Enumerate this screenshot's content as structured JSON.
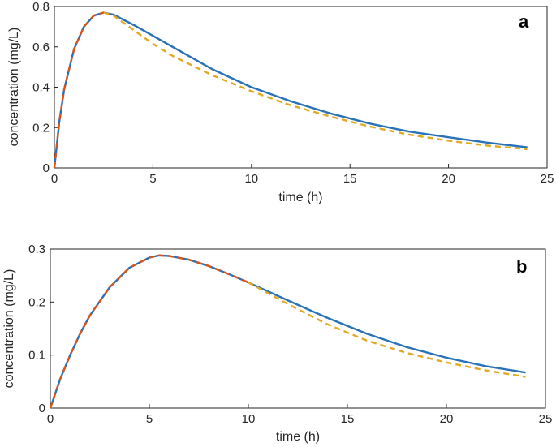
{
  "colors": {
    "blue": "#2a72b8",
    "orange": "#d9541a",
    "gold": "#e2a820",
    "axis": "#262626"
  },
  "chart_data": [
    {
      "type": "line",
      "panel_label": "a",
      "xlabel": "time (h)",
      "ylabel": "concentration (mg/L)",
      "xlim": [
        0,
        25
      ],
      "ylim": [
        0,
        0.8
      ],
      "xticks": [
        0,
        5,
        10,
        15,
        20,
        25
      ],
      "xtick_labels": [
        "0",
        "5",
        "10",
        "15",
        "20",
        "25"
      ],
      "yticks": [
        0,
        0.2,
        0.4,
        0.6,
        0.8
      ],
      "ytick_labels": [
        "0",
        "0.2",
        "0.4",
        "0.6",
        "0.8"
      ],
      "grid": false,
      "series": [
        {
          "color": "#2a72b8",
          "style": "solid",
          "x": [
            0,
            0.25,
            0.5,
            1,
            1.5,
            2,
            2.5,
            3,
            4,
            5,
            6,
            8,
            10,
            12,
            14,
            16,
            18,
            20,
            22,
            24
          ],
          "y": [
            0,
            0.23,
            0.39,
            0.59,
            0.7,
            0.755,
            0.77,
            0.76,
            0.71,
            0.655,
            0.6,
            0.49,
            0.4,
            0.33,
            0.27,
            0.22,
            0.18,
            0.152,
            0.125,
            0.102
          ]
        },
        {
          "color": "#d9541a",
          "style": "dashed",
          "x": [
            0,
            0.25,
            0.5,
            1,
            1.5,
            2,
            2.5
          ],
          "y": [
            0,
            0.23,
            0.39,
            0.59,
            0.7,
            0.755,
            0.77
          ]
        },
        {
          "color": "#e2a820",
          "style": "dashed",
          "x": [
            2.5,
            3,
            4,
            5,
            6,
            8,
            10,
            12,
            14,
            16,
            18,
            20,
            22,
            24
          ],
          "y": [
            0.77,
            0.755,
            0.685,
            0.615,
            0.555,
            0.46,
            0.38,
            0.31,
            0.255,
            0.205,
            0.165,
            0.135,
            0.11,
            0.093
          ]
        }
      ]
    },
    {
      "type": "line",
      "panel_label": "b",
      "xlabel": "time (h)",
      "ylabel": "concentration (mg/L)",
      "xlim": [
        0,
        25
      ],
      "ylim": [
        0,
        0.3
      ],
      "xticks": [
        0,
        5,
        10,
        15,
        20,
        25
      ],
      "xtick_labels": [
        "0",
        "5",
        "10",
        "15",
        "20",
        "25"
      ],
      "yticks": [
        0,
        0.1,
        0.2,
        0.3
      ],
      "ytick_labels": [
        "0",
        "0.1",
        "0.2",
        "0.3"
      ],
      "grid": false,
      "series": [
        {
          "color": "#2a72b8",
          "style": "solid",
          "x": [
            0,
            0.5,
            1,
            1.5,
            2,
            3,
            4,
            5,
            5.5,
            6,
            7,
            8,
            9,
            10,
            12,
            14,
            16,
            18,
            20,
            22,
            24
          ],
          "y": [
            0,
            0.055,
            0.1,
            0.14,
            0.175,
            0.228,
            0.265,
            0.284,
            0.288,
            0.287,
            0.28,
            0.268,
            0.253,
            0.237,
            0.203,
            0.17,
            0.14,
            0.115,
            0.095,
            0.079,
            0.067
          ]
        },
        {
          "color": "#d9541a",
          "style": "dashed",
          "x": [
            0,
            0.5,
            1,
            1.5,
            2,
            3,
            4,
            5,
            5.5,
            6,
            7,
            8,
            9,
            10
          ],
          "y": [
            0,
            0.055,
            0.1,
            0.14,
            0.175,
            0.228,
            0.265,
            0.284,
            0.288,
            0.287,
            0.28,
            0.268,
            0.253,
            0.237
          ]
        },
        {
          "color": "#e2a820",
          "style": "dashed",
          "x": [
            10,
            12,
            14,
            16,
            18,
            20,
            22,
            24
          ],
          "y": [
            0.237,
            0.196,
            0.158,
            0.127,
            0.104,
            0.086,
            0.071,
            0.059
          ]
        }
      ]
    }
  ]
}
